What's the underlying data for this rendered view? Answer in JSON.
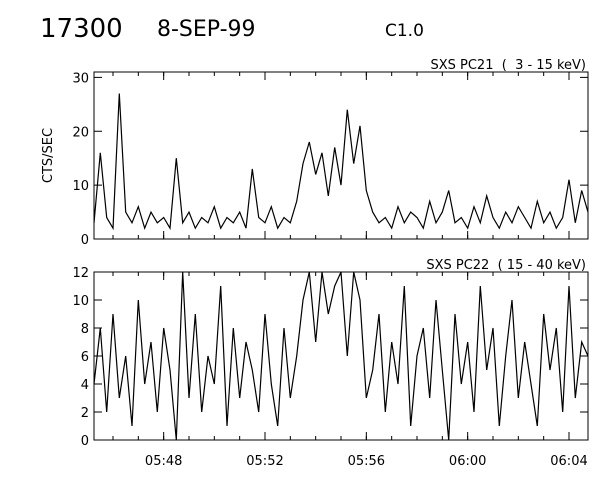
{
  "header": {
    "event_id": "17300",
    "date": "8-SEP-99",
    "goes_class": "C1.0"
  },
  "chart_data": [
    {
      "type": "line",
      "title": "SXS PC21  (  3 - 15 keV)",
      "ylabel": "CTS/SEC",
      "xlabel": "",
      "ylim": [
        0,
        31
      ],
      "yticks": [
        0,
        10,
        20,
        30
      ],
      "xlim": [
        "05:45:15",
        "06:04:45"
      ],
      "xticks": [
        "05:48",
        "05:52",
        "05:56",
        "06:00",
        "06:04"
      ],
      "grid": false,
      "series": [
        {
          "x": [
            "05:45:15",
            "05:45:30",
            "05:45:45",
            "05:46:00",
            "05:46:15",
            "05:46:30",
            "05:46:45",
            "05:47:00",
            "05:47:15",
            "05:47:30",
            "05:47:45",
            "05:48:00",
            "05:48:15",
            "05:48:30",
            "05:48:45",
            "05:49:00",
            "05:49:15",
            "05:49:30",
            "05:49:45",
            "05:50:00",
            "05:50:15",
            "05:50:30",
            "05:50:45",
            "05:51:00",
            "05:51:15",
            "05:51:30",
            "05:51:45",
            "05:52:00",
            "05:52:15",
            "05:52:30",
            "05:52:45",
            "05:53:00",
            "05:53:15",
            "05:53:30",
            "05:53:45",
            "05:54:00",
            "05:54:15",
            "05:54:30",
            "05:54:45",
            "05:55:00",
            "05:55:15",
            "05:55:30",
            "05:55:45",
            "05:56:00",
            "05:56:15",
            "05:56:30",
            "05:56:45",
            "05:57:00",
            "05:57:15",
            "05:57:30",
            "05:57:45",
            "05:58:00",
            "05:58:15",
            "05:58:30",
            "05:58:45",
            "05:59:00",
            "05:59:15",
            "05:59:30",
            "05:59:45",
            "06:00:00",
            "06:00:15",
            "06:00:30",
            "06:00:45",
            "06:01:00",
            "06:01:15",
            "06:01:30",
            "06:01:45",
            "06:02:00",
            "06:02:15",
            "06:02:30",
            "06:02:45",
            "06:03:00",
            "06:03:15",
            "06:03:30",
            "06:03:45",
            "06:04:00",
            "06:04:15",
            "06:04:30",
            "06:04:45"
          ],
          "values": [
            3,
            16,
            4,
            2,
            27,
            5,
            3,
            6,
            2,
            5,
            3,
            4,
            2,
            15,
            3,
            5,
            2,
            4,
            3,
            6,
            2,
            4,
            3,
            5,
            2,
            13,
            4,
            3,
            6,
            2,
            4,
            3,
            7,
            14,
            18,
            12,
            16,
            8,
            17,
            10,
            24,
            14,
            21,
            9,
            5,
            3,
            4,
            2,
            6,
            3,
            5,
            4,
            2,
            7,
            3,
            5,
            9,
            3,
            4,
            2,
            6,
            3,
            8,
            4,
            2,
            5,
            3,
            6,
            4,
            2,
            7,
            3,
            5,
            2,
            4,
            11,
            3,
            9,
            5
          ]
        }
      ]
    },
    {
      "type": "line",
      "title": "SXS PC22  ( 15 - 40 keV)",
      "ylabel": "",
      "xlabel": "",
      "ylim": [
        0,
        12
      ],
      "yticks": [
        0,
        2,
        4,
        6,
        8,
        10,
        12
      ],
      "xlim": [
        "05:45:15",
        "06:04:45"
      ],
      "xticks": [
        "05:48",
        "05:52",
        "05:56",
        "06:00",
        "06:04"
      ],
      "grid": false,
      "series": [
        {
          "x": [
            "05:45:15",
            "05:45:30",
            "05:45:45",
            "05:46:00",
            "05:46:15",
            "05:46:30",
            "05:46:45",
            "05:47:00",
            "05:47:15",
            "05:47:30",
            "05:47:45",
            "05:48:00",
            "05:48:15",
            "05:48:30",
            "05:48:45",
            "05:49:00",
            "05:49:15",
            "05:49:30",
            "05:49:45",
            "05:50:00",
            "05:50:15",
            "05:50:30",
            "05:50:45",
            "05:51:00",
            "05:51:15",
            "05:51:30",
            "05:51:45",
            "05:52:00",
            "05:52:15",
            "05:52:30",
            "05:52:45",
            "05:53:00",
            "05:53:15",
            "05:53:30",
            "05:53:45",
            "05:54:00",
            "05:54:15",
            "05:54:30",
            "05:54:45",
            "05:55:00",
            "05:55:15",
            "05:55:30",
            "05:55:45",
            "05:56:00",
            "05:56:15",
            "05:56:30",
            "05:56:45",
            "05:57:00",
            "05:57:15",
            "05:57:30",
            "05:57:45",
            "05:58:00",
            "05:58:15",
            "05:58:30",
            "05:58:45",
            "05:59:00",
            "05:59:15",
            "05:59:30",
            "05:59:45",
            "06:00:00",
            "06:00:15",
            "06:00:30",
            "06:00:45",
            "06:01:00",
            "06:01:15",
            "06:01:30",
            "06:01:45",
            "06:02:00",
            "06:02:15",
            "06:02:30",
            "06:02:45",
            "06:03:00",
            "06:03:15",
            "06:03:30",
            "06:03:45",
            "06:04:00",
            "06:04:15",
            "06:04:30",
            "06:04:45"
          ],
          "values": [
            4,
            8,
            2,
            9,
            3,
            6,
            1,
            10,
            4,
            7,
            2,
            8,
            5,
            0,
            12,
            3,
            9,
            2,
            6,
            4,
            11,
            1,
            8,
            3,
            7,
            5,
            2,
            9,
            4,
            1,
            8,
            3,
            6,
            10,
            12,
            7,
            12,
            9,
            11,
            12,
            6,
            12,
            10,
            3,
            5,
            9,
            2,
            7,
            4,
            11,
            1,
            6,
            8,
            3,
            10,
            5,
            0,
            9,
            4,
            7,
            2,
            11,
            5,
            8,
            1,
            6,
            10,
            3,
            7,
            4,
            1,
            9,
            5,
            8,
            2,
            11,
            3,
            7,
            6
          ]
        }
      ]
    }
  ]
}
